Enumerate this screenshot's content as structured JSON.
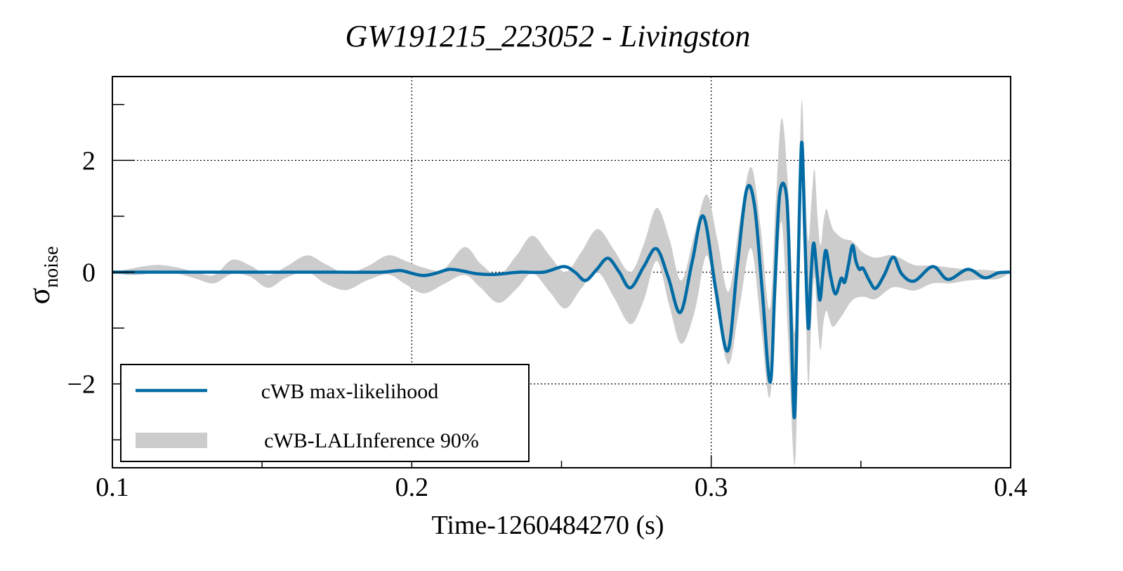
{
  "chart_data": {
    "type": "line",
    "title": "GW191215_223052 - Livingston",
    "xlabel": "Time-1260484270 (s)",
    "ylabel_main": "σ",
    "ylabel_sub": "noise",
    "xlim": [
      0.1,
      0.4
    ],
    "ylim": [
      -3.5,
      3.5
    ],
    "xticks": [
      0.1,
      0.2,
      0.3,
      0.4
    ],
    "xtick_labels": [
      "0.1",
      "0.2",
      "0.3",
      "0.4"
    ],
    "xminor": [
      0.15,
      0.25,
      0.35
    ],
    "yticks": [
      -2,
      0,
      2
    ],
    "ytick_labels": [
      "−2",
      "0",
      "2"
    ],
    "yminor": [
      -3,
      -1,
      1,
      3
    ],
    "grid": true,
    "legend_position": "lower-left",
    "colors": {
      "ml": "#006ba4",
      "band": "#cccccc"
    },
    "series": [
      {
        "name": "cWB max-likelihood",
        "kind": "line",
        "x": [
          0.1,
          0.12,
          0.14,
          0.16,
          0.175,
          0.19,
          0.196,
          0.2,
          0.204,
          0.208,
          0.2125,
          0.217,
          0.222,
          0.228,
          0.236,
          0.244,
          0.2507,
          0.2545,
          0.258,
          0.2618,
          0.2655,
          0.2693,
          0.273,
          0.2775,
          0.2817,
          0.2857,
          0.2897,
          0.2937,
          0.2974,
          0.3015,
          0.3055,
          0.3087,
          0.3118,
          0.3144,
          0.317,
          0.3197,
          0.3213,
          0.3229,
          0.3252,
          0.3265,
          0.3278,
          0.329,
          0.3302,
          0.3313,
          0.3324,
          0.3333,
          0.3342,
          0.3353,
          0.3363,
          0.3373,
          0.3383,
          0.3398,
          0.3415,
          0.3434,
          0.3446,
          0.3459,
          0.3472,
          0.3483,
          0.3495,
          0.3507,
          0.3528,
          0.3549,
          0.3578,
          0.3608,
          0.3636,
          0.3678,
          0.374,
          0.3791,
          0.3857,
          0.3913,
          0.396,
          0.4
        ],
        "y": [
          0.0,
          0.0,
          0.0,
          0.0,
          0.0,
          0.0,
          0.03,
          -0.02,
          -0.06,
          -0.02,
          0.05,
          0.02,
          -0.03,
          -0.04,
          0.0,
          0.0,
          0.1,
          0.0,
          -0.15,
          0.05,
          0.25,
          0.0,
          -0.28,
          0.1,
          0.42,
          -0.1,
          -0.72,
          0.2,
          1.0,
          -0.3,
          -1.41,
          0.1,
          1.47,
          1.21,
          -0.3,
          -1.97,
          -0.2,
          1.41,
          1.34,
          -0.5,
          -2.6,
          0.0,
          2.32,
          0.6,
          -1.0,
          -0.1,
          0.52,
          0.0,
          -0.5,
          0.0,
          0.39,
          -0.05,
          -0.39,
          -0.11,
          -0.18,
          0.15,
          0.48,
          0.2,
          0.05,
          0.07,
          -0.15,
          -0.29,
          -0.05,
          0.27,
          -0.03,
          -0.16,
          0.1,
          -0.13,
          0.05,
          -0.1,
          -0.01,
          0.0
        ]
      },
      {
        "name": "cWB-LALInference 90%",
        "kind": "band",
        "x": [
          0.1,
          0.105,
          0.11,
          0.1157,
          0.122,
          0.128,
          0.134,
          0.14,
          0.146,
          0.152,
          0.158,
          0.165,
          0.171,
          0.178,
          0.185,
          0.192,
          0.198,
          0.204,
          0.2105,
          0.2176,
          0.223,
          0.229,
          0.235,
          0.2403,
          0.246,
          0.2513,
          0.2565,
          0.262,
          0.2675,
          0.273,
          0.2775,
          0.2818,
          0.286,
          0.29,
          0.2945,
          0.2985,
          0.302,
          0.3058,
          0.3095,
          0.3133,
          0.3165,
          0.3195,
          0.3215,
          0.3235,
          0.3257,
          0.3278,
          0.329,
          0.3302,
          0.3313,
          0.3324,
          0.3335,
          0.3345,
          0.3355,
          0.3365,
          0.3375,
          0.3385,
          0.3398,
          0.341,
          0.344,
          0.3472,
          0.3507,
          0.3549,
          0.3608,
          0.3678,
          0.374,
          0.38,
          0.3857,
          0.391,
          0.396,
          0.4
        ],
        "upper": [
          0.0,
          0.05,
          0.1,
          0.13,
          0.08,
          0.0,
          -0.05,
          0.22,
          0.12,
          -0.05,
          0.1,
          0.3,
          0.15,
          -0.02,
          0.1,
          0.3,
          0.2,
          0.08,
          0.05,
          0.45,
          0.15,
          -0.05,
          0.3,
          0.65,
          0.3,
          0.0,
          0.35,
          0.77,
          0.4,
          0.0,
          0.5,
          1.15,
          0.6,
          -0.15,
          0.7,
          1.39,
          0.6,
          -0.35,
          0.9,
          1.88,
          0.8,
          -0.67,
          1.2,
          2.75,
          1.5,
          -1.08,
          0.8,
          3.07,
          1.7,
          0.56,
          1.3,
          1.84,
          1.0,
          0.48,
          0.9,
          1.13,
          0.9,
          0.74,
          0.6,
          0.55,
          0.35,
          0.26,
          0.3,
          0.13,
          0.12,
          0.08,
          0.05,
          0.04,
          0.02,
          0.0
        ],
        "lower": [
          0.0,
          -0.05,
          -0.04,
          0.0,
          -0.03,
          -0.12,
          -0.2,
          -0.03,
          -0.08,
          -0.28,
          -0.1,
          0.0,
          -0.2,
          -0.32,
          -0.15,
          -0.04,
          -0.22,
          -0.38,
          -0.22,
          -0.05,
          -0.28,
          -0.55,
          -0.3,
          -0.02,
          -0.35,
          -0.65,
          -0.3,
          0.0,
          -0.45,
          -0.93,
          -0.5,
          0.2,
          -0.6,
          -1.28,
          -0.7,
          0.3,
          -0.7,
          -1.65,
          -0.6,
          0.43,
          -0.9,
          -2.25,
          -0.6,
          0.9,
          -1.2,
          -3.46,
          -1.5,
          1.8,
          0.0,
          -2.0,
          -0.8,
          -0.09,
          -0.9,
          -1.39,
          -0.9,
          -0.69,
          -0.9,
          -0.97,
          -0.75,
          -0.5,
          -0.44,
          -0.48,
          -0.27,
          -0.33,
          -0.2,
          -0.2,
          -0.15,
          -0.13,
          -0.12,
          0.0
        ]
      }
    ]
  }
}
